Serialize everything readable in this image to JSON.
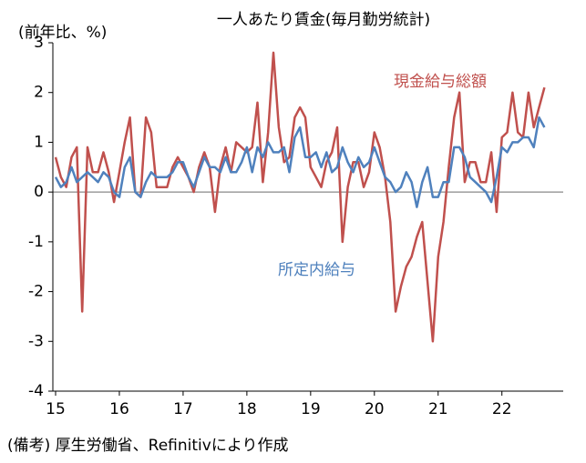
{
  "chart_data": {
    "type": "line",
    "title": "一人あたり賃金(毎月勤労統計)",
    "y_label": "(前年比、%)",
    "source": "(備考) 厚生労働省、Refinitivにより作成",
    "categories": [
      "15",
      null,
      null,
      null,
      null,
      null,
      null,
      null,
      null,
      null,
      null,
      null,
      "16",
      null,
      null,
      null,
      null,
      null,
      null,
      null,
      null,
      null,
      null,
      null,
      "17",
      null,
      null,
      null,
      null,
      null,
      null,
      null,
      null,
      null,
      null,
      null,
      "18",
      null,
      null,
      null,
      null,
      null,
      null,
      null,
      null,
      null,
      null,
      null,
      "19",
      null,
      null,
      null,
      null,
      null,
      null,
      null,
      null,
      null,
      null,
      null,
      "20",
      null,
      null,
      null,
      null,
      null,
      null,
      null,
      null,
      null,
      null,
      null,
      "21",
      null,
      null,
      null,
      null,
      null,
      null,
      null,
      null,
      null,
      null,
      null,
      "22",
      null,
      null,
      null,
      null,
      null,
      null,
      null,
      null
    ],
    "series": [
      {
        "name": "現金給与総額",
        "color": "#c0504d",
        "values": [
          0.7,
          0.3,
          0.1,
          0.7,
          0.9,
          -2.4,
          0.9,
          0.4,
          0.4,
          0.8,
          0.4,
          -0.2,
          0.4,
          1.0,
          1.5,
          0.0,
          -0.1,
          1.5,
          1.2,
          0.1,
          0.1,
          0.1,
          0.5,
          0.7,
          0.5,
          0.3,
          0.0,
          0.5,
          0.8,
          0.5,
          -0.4,
          0.5,
          0.9,
          0.4,
          1.0,
          0.9,
          0.8,
          0.9,
          1.8,
          0.2,
          1.2,
          2.8,
          1.3,
          0.6,
          0.7,
          1.5,
          1.7,
          1.5,
          0.5,
          0.3,
          0.1,
          0.6,
          0.8,
          1.3,
          -1.0,
          0.1,
          0.6,
          0.6,
          0.1,
          0.4,
          1.2,
          0.9,
          0.3,
          -0.6,
          -2.4,
          -1.9,
          -1.5,
          -1.3,
          -0.9,
          -0.6,
          -1.8,
          -3.0,
          -1.3,
          -0.6,
          0.5,
          1.5,
          2.0,
          0.2,
          0.6,
          0.6,
          0.2,
          0.2,
          0.8,
          -0.4,
          1.1,
          1.2,
          2.0,
          1.2,
          1.1,
          2.0,
          1.3,
          1.7,
          2.1
        ]
      },
      {
        "name": "所定内給与",
        "color": "#4f81bd",
        "values": [
          0.3,
          0.1,
          0.2,
          0.5,
          0.2,
          0.3,
          0.4,
          0.3,
          0.2,
          0.4,
          0.3,
          0.0,
          -0.1,
          0.5,
          0.7,
          0.0,
          -0.1,
          0.2,
          0.4,
          0.3,
          0.3,
          0.3,
          0.4,
          0.6,
          0.6,
          0.3,
          0.1,
          0.4,
          0.7,
          0.5,
          0.5,
          0.4,
          0.7,
          0.4,
          0.4,
          0.6,
          0.9,
          0.4,
          0.9,
          0.7,
          1.0,
          0.8,
          0.8,
          0.9,
          0.4,
          1.1,
          1.3,
          0.7,
          0.7,
          0.8,
          0.5,
          0.8,
          0.4,
          0.5,
          0.9,
          0.6,
          0.4,
          0.7,
          0.5,
          0.6,
          0.9,
          0.6,
          0.3,
          0.2,
          0.0,
          0.1,
          0.4,
          0.2,
          -0.3,
          0.2,
          0.5,
          -0.1,
          -0.1,
          0.2,
          0.2,
          0.9,
          0.9,
          0.7,
          0.3,
          0.2,
          0.1,
          0.0,
          -0.2,
          0.3,
          0.9,
          0.8,
          1.0,
          1.0,
          1.1,
          1.1,
          0.9,
          1.5,
          1.3
        ]
      }
    ],
    "ylim": [
      -4,
      3
    ],
    "yticks": [
      -4,
      -3,
      -2,
      -1,
      0,
      1,
      2,
      3
    ]
  }
}
